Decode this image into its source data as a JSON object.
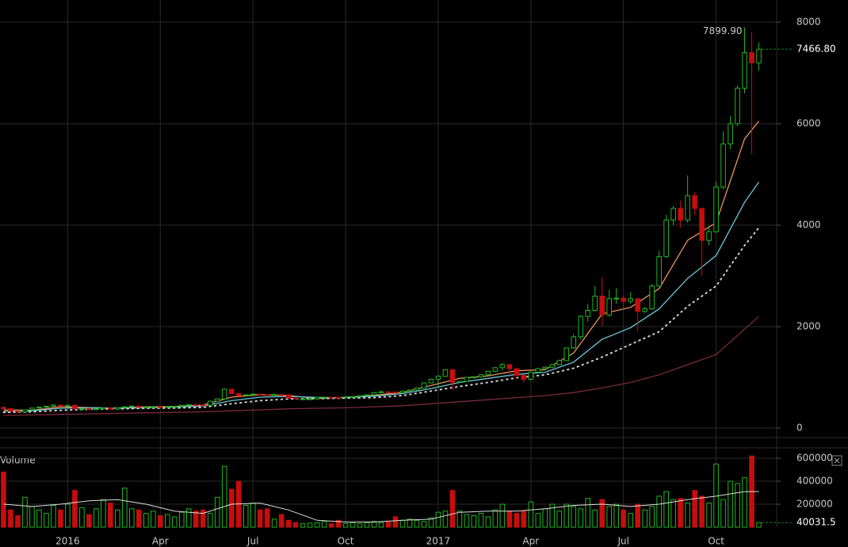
{
  "chart_data": [
    {
      "type": "candlestick",
      "xlim": [
        -0.5,
        108.5
      ],
      "xticks": [
        {
          "value": 9,
          "label": "2016"
        },
        {
          "value": 22,
          "label": "Apr"
        },
        {
          "value": 35,
          "label": "Jul"
        },
        {
          "value": 48,
          "label": "Oct"
        },
        {
          "value": 61,
          "label": "2017"
        },
        {
          "value": 74,
          "label": "Apr"
        },
        {
          "value": 87,
          "label": "Jul"
        },
        {
          "value": 100,
          "label": "Oct"
        }
      ],
      "ylim": [
        -187.5,
        8437.5
      ],
      "yticks": [
        0,
        2000,
        4000,
        6000,
        8000
      ],
      "grid": true,
      "up_color": "#1fb81f",
      "down_color": "#c80d0d",
      "open": [
        410,
        380,
        335,
        320,
        360,
        395,
        415,
        430,
        455,
        430,
        450,
        380,
        385,
        380,
        380,
        400,
        375,
        405,
        420,
        435,
        410,
        415,
        420,
        418,
        425,
        430,
        450,
        460,
        455,
        450,
        530,
        575,
        765,
        680,
        640,
        655,
        670,
        655,
        650,
        660,
        655,
        590,
        575,
        575,
        575,
        605,
        610,
        605,
        600,
        615,
        620,
        640,
        655,
        700,
        715,
        710,
        700,
        730,
        750,
        790,
        890,
        960,
        1020,
        1150,
        900,
        920,
        1000,
        1010,
        1050,
        1120,
        1190,
        1250,
        1170,
        1040,
        960,
        1100,
        1170,
        1200,
        1250,
        1330,
        1580,
        1800,
        2200,
        2320,
        2600,
        2230,
        2550,
        2560,
        2500,
        2550,
        2300,
        2350,
        2800,
        3380,
        4100,
        4330,
        4100,
        4580,
        4330,
        3700,
        3870,
        4750,
        5600,
        6000,
        6700,
        7400,
        7200
      ],
      "high": [
        430,
        390,
        345,
        365,
        400,
        425,
        440,
        465,
        460,
        455,
        455,
        395,
        390,
        385,
        405,
        405,
        410,
        425,
        440,
        440,
        420,
        425,
        425,
        430,
        435,
        455,
        465,
        465,
        460,
        540,
        590,
        780,
        770,
        690,
        665,
        680,
        675,
        660,
        665,
        665,
        660,
        595,
        585,
        580,
        610,
        615,
        615,
        610,
        620,
        625,
        645,
        660,
        710,
        740,
        720,
        715,
        740,
        760,
        800,
        900,
        975,
        1050,
        1160,
        1160,
        930,
        1010,
        1020,
        1060,
        1130,
        1200,
        1290,
        1260,
        1180,
        1060,
        1110,
        1190,
        1210,
        1270,
        1350,
        1590,
        1850,
        2230,
        2450,
        2800,
        2980,
        2720,
        2760,
        2620,
        2680,
        2550,
        2390,
        2840,
        3490,
        4200,
        4380,
        4480,
        4980,
        4650,
        4350,
        3950,
        4860,
        5850,
        6150,
        6750,
        7899.9,
        7800,
        7600
      ],
      "low": [
        360,
        320,
        300,
        310,
        350,
        385,
        405,
        420,
        420,
        420,
        365,
        370,
        370,
        370,
        375,
        365,
        370,
        400,
        415,
        400,
        405,
        410,
        410,
        412,
        420,
        425,
        445,
        445,
        440,
        445,
        520,
        560,
        670,
        600,
        630,
        645,
        650,
        640,
        645,
        645,
        580,
        565,
        565,
        565,
        570,
        600,
        600,
        590,
        595,
        610,
        615,
        630,
        650,
        690,
        700,
        690,
        690,
        725,
        745,
        785,
        880,
        780,
        1010,
        750,
        880,
        910,
        980,
        990,
        1040,
        1100,
        1140,
        1000,
        960,
        900,
        940,
        1090,
        1160,
        1180,
        1240,
        1320,
        1560,
        1750,
        2100,
        2300,
        2000,
        2200,
        2450,
        2350,
        2450,
        1900,
        2270,
        2330,
        2790,
        3350,
        4000,
        3950,
        4050,
        4200,
        3000,
        3600,
        3850,
        4700,
        5500,
        5950,
        6600,
        5400,
        7050
      ],
      "close": [
        380,
        335,
        320,
        360,
        395,
        415,
        430,
        455,
        430,
        450,
        380,
        385,
        380,
        380,
        400,
        375,
        405,
        420,
        435,
        410,
        415,
        420,
        418,
        425,
        430,
        450,
        460,
        455,
        450,
        530,
        575,
        765,
        680,
        640,
        655,
        670,
        655,
        650,
        660,
        655,
        590,
        575,
        575,
        575,
        605,
        610,
        605,
        600,
        615,
        620,
        640,
        655,
        700,
        715,
        710,
        700,
        730,
        750,
        790,
        890,
        960,
        1020,
        1150,
        900,
        920,
        1000,
        1010,
        1050,
        1120,
        1190,
        1250,
        1170,
        1040,
        960,
        1100,
        1170,
        1200,
        1250,
        1330,
        1580,
        1800,
        2200,
        2320,
        2600,
        2230,
        2550,
        2560,
        2500,
        2550,
        2300,
        2350,
        2800,
        3380,
        4100,
        4330,
        4100,
        4580,
        4330,
        3700,
        3870,
        4750,
        5600,
        6000,
        6700,
        7400,
        7200,
        7466.8
      ],
      "series": [
        {
          "color": "#e8965a",
          "style": "solid",
          "x": [
            0,
            4,
            8,
            12,
            16,
            20,
            24,
            28,
            32,
            36,
            40,
            44,
            48,
            52,
            56,
            60,
            64,
            68,
            72,
            76,
            80,
            84,
            88,
            92,
            96,
            100,
            104,
            106
          ],
          "values": [
            360,
            350,
            420,
            405,
            390,
            420,
            425,
            455,
            610,
            660,
            640,
            585,
            605,
            645,
            705,
            840,
            980,
            1030,
            1130,
            1150,
            1480,
            2250,
            2380,
            2750,
            3700,
            4050,
            5700,
            6050
          ]
        },
        {
          "color": "#6cc6d8",
          "style": "solid",
          "x": [
            0,
            4,
            8,
            12,
            16,
            20,
            24,
            28,
            32,
            36,
            40,
            44,
            48,
            52,
            56,
            60,
            64,
            68,
            72,
            76,
            80,
            84,
            88,
            92,
            96,
            100,
            104,
            106
          ],
          "values": [
            330,
            340,
            390,
            400,
            395,
            400,
            415,
            435,
            540,
            610,
            625,
            605,
            600,
            630,
            680,
            780,
            900,
            980,
            1060,
            1100,
            1300,
            1750,
            1980,
            2350,
            2950,
            3400,
            4450,
            4850
          ]
        },
        {
          "color": "#cccccc",
          "style": "dotted",
          "x": [
            0,
            4,
            8,
            12,
            16,
            20,
            24,
            28,
            32,
            36,
            40,
            44,
            48,
            52,
            56,
            60,
            64,
            68,
            72,
            76,
            80,
            84,
            88,
            92,
            96,
            100,
            104,
            106
          ],
          "values": [
            310,
            320,
            350,
            370,
            380,
            390,
            395,
            410,
            480,
            540,
            575,
            580,
            590,
            600,
            640,
            730,
            820,
            900,
            990,
            1050,
            1180,
            1400,
            1650,
            1900,
            2400,
            2800,
            3600,
            3950
          ]
        },
        {
          "color": "#7a2a3c",
          "style": "solid",
          "x": [
            0,
            4,
            8,
            12,
            16,
            20,
            24,
            28,
            32,
            36,
            40,
            44,
            48,
            52,
            56,
            60,
            64,
            68,
            72,
            76,
            80,
            84,
            88,
            92,
            96,
            100,
            104,
            106
          ],
          "values": [
            250,
            260,
            270,
            280,
            290,
            300,
            310,
            320,
            340,
            360,
            380,
            390,
            400,
            420,
            440,
            480,
            520,
            560,
            600,
            640,
            700,
            790,
            900,
            1050,
            1250,
            1450,
            1950,
            2200
          ]
        }
      ],
      "high_marker": {
        "value": 7899.9,
        "label": "7899.90"
      },
      "last_price": {
        "value": 7466.8,
        "label": "7466.80"
      }
    },
    {
      "type": "volume",
      "title": "Volume",
      "ylim": [
        0,
        690000
      ],
      "yticks": [
        200000,
        400000,
        600000
      ],
      "values": [
        480000,
        150000,
        100000,
        260000,
        180000,
        150000,
        120000,
        190000,
        150000,
        200000,
        320000,
        170000,
        110000,
        160000,
        240000,
        210000,
        150000,
        340000,
        160000,
        150000,
        120000,
        140000,
        100000,
        110000,
        90000,
        130000,
        160000,
        140000,
        150000,
        120000,
        260000,
        530000,
        330000,
        400000,
        190000,
        210000,
        150000,
        160000,
        70000,
        110000,
        60000,
        40000,
        30000,
        35000,
        40000,
        50000,
        30000,
        60000,
        30000,
        40000,
        30000,
        40000,
        50000,
        40000,
        45000,
        90000,
        60000,
        70000,
        60000,
        50000,
        80000,
        130000,
        140000,
        320000,
        140000,
        110000,
        100000,
        120000,
        90000,
        150000,
        200000,
        140000,
        120000,
        140000,
        220000,
        120000,
        160000,
        200000,
        140000,
        200000,
        180000,
        160000,
        250000,
        150000,
        240000,
        180000,
        200000,
        150000,
        120000,
        200000,
        150000,
        180000,
        270000,
        310000,
        240000,
        250000,
        210000,
        320000,
        270000,
        210000,
        550000,
        240000,
        400000,
        380000,
        430000,
        620000,
        40031.5
      ],
      "line": {
        "color": "#dddddd",
        "x": [
          0,
          4,
          8,
          12,
          16,
          20,
          24,
          28,
          32,
          36,
          40,
          44,
          48,
          52,
          56,
          60,
          64,
          68,
          72,
          76,
          80,
          84,
          88,
          92,
          96,
          100,
          104,
          106
        ],
        "values": [
          200000,
          180000,
          200000,
          230000,
          240000,
          200000,
          140000,
          120000,
          200000,
          210000,
          150000,
          60000,
          45000,
          45000,
          60000,
          70000,
          130000,
          140000,
          140000,
          160000,
          190000,
          200000,
          180000,
          200000,
          240000,
          270000,
          310000,
          310000
        ]
      },
      "last_volume": 40031.5
    }
  ]
}
